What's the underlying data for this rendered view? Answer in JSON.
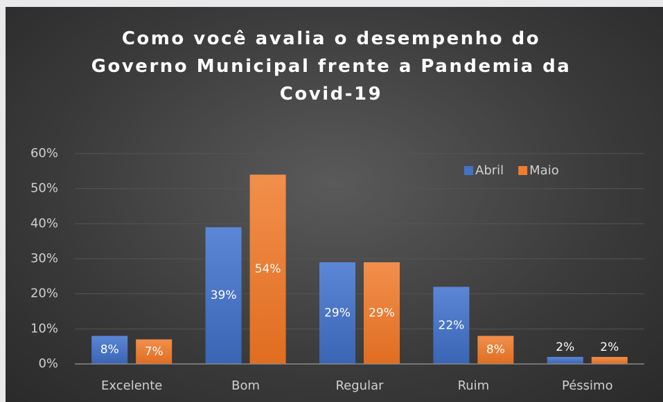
{
  "chart_data": {
    "type": "bar",
    "title": "Como você avalia o desempenho do Governo Municipal frente a Pandemia da Covid-19",
    "categories": [
      "Excelente",
      "Bom",
      "Regular",
      "Ruim",
      "Péssimo"
    ],
    "series": [
      {
        "name": "Abril",
        "color": "#4472c4",
        "values": [
          8,
          39,
          29,
          22,
          2
        ],
        "value_labels": [
          "8%",
          "39%",
          "29%",
          "22%",
          "2%"
        ]
      },
      {
        "name": "Maio",
        "color": "#ed7d31",
        "values": [
          7,
          54,
          29,
          8,
          2
        ],
        "value_labels": [
          "7%",
          "54%",
          "29%",
          "8%",
          "2%"
        ]
      }
    ],
    "ylim": [
      0,
      60
    ],
    "yticks": [
      {
        "value": 0,
        "label": "0%"
      },
      {
        "value": 10,
        "label": "10%"
      },
      {
        "value": 20,
        "label": "20%"
      },
      {
        "value": 30,
        "label": "30%"
      },
      {
        "value": 40,
        "label": "40%"
      },
      {
        "value": 50,
        "label": "50%"
      },
      {
        "value": 60,
        "label": "60%"
      }
    ],
    "grid": true,
    "legend": "top-right"
  }
}
